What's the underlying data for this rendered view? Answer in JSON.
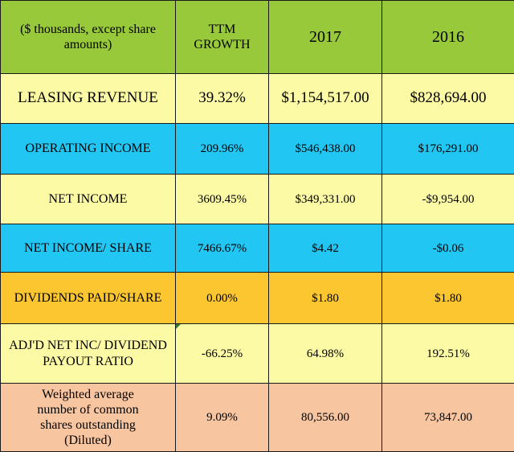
{
  "header": {
    "note": "($ thousands, except share amounts)",
    "ttm_line1": "TTM",
    "ttm_line2": "GROWTH",
    "year1": "2017",
    "year2": "2016"
  },
  "colors": {
    "header_bg": "#98c93a",
    "yellow_rows": "#fdfaa5",
    "blue_rows": "#22c6f3",
    "dividends_row": "#fbc62f",
    "weighted_row": "#f8c5a1"
  },
  "rows": [
    {
      "label": "LEASING REVENUE",
      "growth": "39.32%",
      "y2017": "$1,154,517.00",
      "y2016": "$828,694.00"
    },
    {
      "label": "OPERATING INCOME",
      "growth": "209.96%",
      "y2017": "$546,438.00",
      "y2016": "$176,291.00"
    },
    {
      "label": "NET INCOME",
      "growth": "3609.45%",
      "y2017": "$349,331.00",
      "y2016": "-$9,954.00"
    },
    {
      "label": "NET INCOME/ SHARE",
      "growth": "7466.67%",
      "y2017": "$4.42",
      "y2016": "-$0.06"
    },
    {
      "label": "DIVIDENDS PAID/SHARE",
      "growth": "0.00%",
      "y2017": "$1.80",
      "y2016": "$1.80"
    },
    {
      "label_line1": "ADJ'D NET INC/ DIVIDEND",
      "label_line2": "PAYOUT RATIO",
      "growth": "-66.25%",
      "y2017": "64.98%",
      "y2016": "192.51%"
    },
    {
      "label_line1": "Weighted average",
      "label_line2": "number of common",
      "label_line3": "shares outstanding",
      "label_line4": "(Diluted)",
      "growth": "9.09%",
      "y2017": "80,556.00",
      "y2016": "73,847.00"
    }
  ]
}
